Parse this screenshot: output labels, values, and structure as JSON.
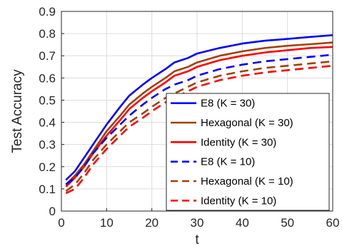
{
  "chart_data": {
    "type": "line",
    "title": "",
    "xlabel": "t",
    "ylabel": "Test Accuracy",
    "xlim": [
      0,
      60
    ],
    "ylim": [
      0,
      0.9
    ],
    "xticks": [
      0,
      10,
      20,
      30,
      40,
      50,
      60
    ],
    "yticks": [
      0,
      0.1,
      0.2,
      0.3,
      0.4,
      0.5,
      0.6,
      0.7,
      0.8,
      0.9
    ],
    "xtick_labels": [
      "0",
      "10",
      "20",
      "30",
      "40",
      "50",
      "60"
    ],
    "ytick_labels": [
      "0",
      "0.1",
      "0.2",
      "0.3",
      "0.4",
      "0.5",
      "0.6",
      "0.7",
      "0.8",
      "0.9"
    ],
    "grid": true,
    "legend_position": "bottom-right",
    "x": [
      1,
      3,
      5,
      7,
      10,
      13,
      15,
      18,
      20,
      23,
      25,
      28,
      30,
      35,
      40,
      45,
      50,
      55,
      60
    ],
    "series": [
      {
        "name": "E8 (K = 30)",
        "color": "#0000ff",
        "dash": "solid",
        "values": [
          0.14,
          0.18,
          0.24,
          0.3,
          0.39,
          0.47,
          0.52,
          0.57,
          0.6,
          0.64,
          0.67,
          0.69,
          0.71,
          0.735,
          0.755,
          0.768,
          0.776,
          0.785,
          0.793
        ]
      },
      {
        "name": "Hexagonal (K = 30)",
        "color": "#a0410a",
        "dash": "solid",
        "values": [
          0.12,
          0.16,
          0.21,
          0.27,
          0.36,
          0.43,
          0.48,
          0.53,
          0.56,
          0.6,
          0.63,
          0.65,
          0.67,
          0.7,
          0.72,
          0.735,
          0.745,
          0.752,
          0.76
        ]
      },
      {
        "name": "Identity (K = 30)",
        "color": "#ff0000",
        "dash": "solid",
        "values": [
          0.11,
          0.15,
          0.2,
          0.26,
          0.34,
          0.41,
          0.46,
          0.51,
          0.54,
          0.58,
          0.61,
          0.63,
          0.65,
          0.68,
          0.7,
          0.715,
          0.725,
          0.735,
          0.74
        ]
      },
      {
        "name": "E8 (K = 10)",
        "color": "#0000ff",
        "dash": "dashed",
        "values": [
          0.12,
          0.15,
          0.2,
          0.26,
          0.33,
          0.39,
          0.43,
          0.48,
          0.51,
          0.55,
          0.57,
          0.59,
          0.61,
          0.64,
          0.66,
          0.675,
          0.685,
          0.695,
          0.705
        ]
      },
      {
        "name": "Hexagonal (K = 10)",
        "color": "#a0410a",
        "dash": "dashed",
        "values": [
          0.09,
          0.12,
          0.17,
          0.23,
          0.3,
          0.36,
          0.4,
          0.44,
          0.47,
          0.51,
          0.53,
          0.56,
          0.58,
          0.61,
          0.63,
          0.645,
          0.655,
          0.665,
          0.675
        ]
      },
      {
        "name": "Identity (K = 10)",
        "color": "#ff0000",
        "dash": "dashed",
        "values": [
          0.08,
          0.1,
          0.15,
          0.21,
          0.28,
          0.34,
          0.38,
          0.42,
          0.45,
          0.49,
          0.51,
          0.54,
          0.56,
          0.59,
          0.61,
          0.625,
          0.635,
          0.645,
          0.655
        ]
      }
    ]
  }
}
